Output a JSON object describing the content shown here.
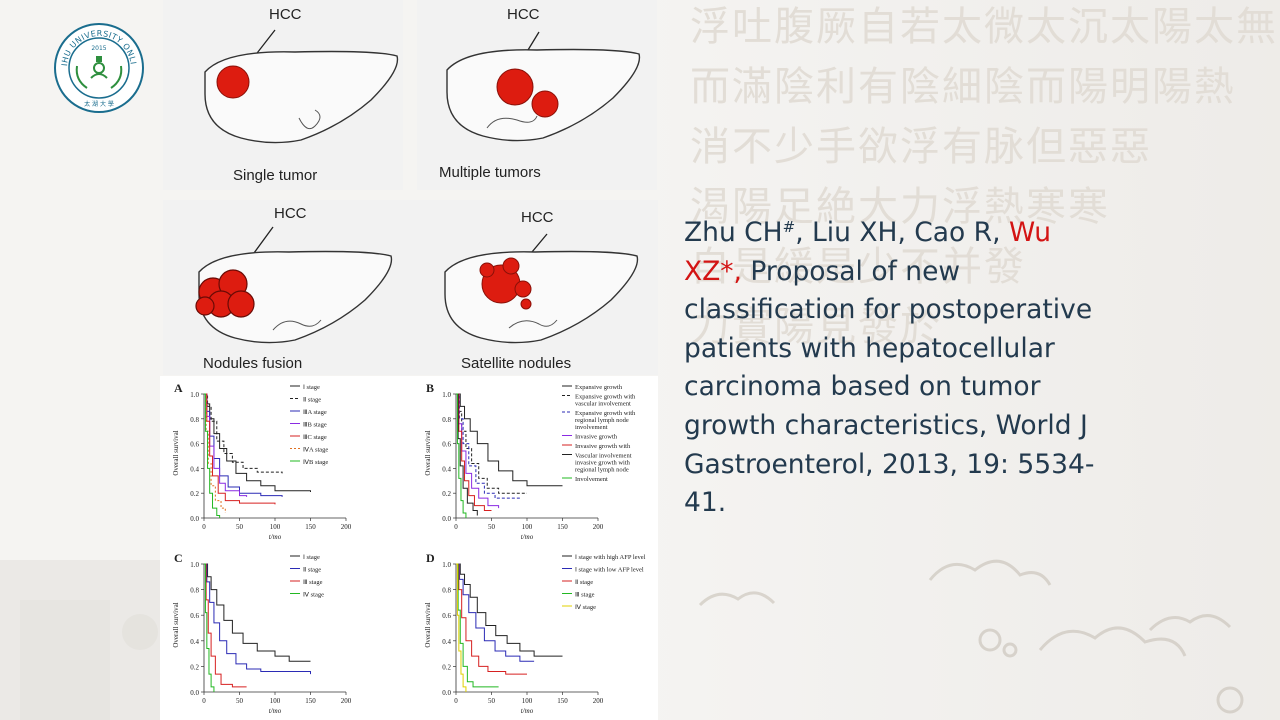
{
  "logo": {
    "ring_text": "TAIHU UNIVERSITY ONLINE",
    "year": "2015",
    "bottom_text": "太 湖 大 學",
    "color": "#1a6d8e"
  },
  "background_glyphs": [
    "浮吐腹厥自若太微太沉太陽太無",
    "而滿陰利有陰細陰而陽明陽熱",
    "消不少手欲浮有脉但惡惡",
    "渴陽足絶大力浮熱寒寒",
    "自是緩是少不并發",
    "力實陽見發於"
  ],
  "liver_diagrams": [
    {
      "hcc": "HCC",
      "caption": "Single tumor"
    },
    {
      "hcc": "HCC",
      "caption": "Multiple tumors"
    },
    {
      "hcc": "HCC",
      "caption": "Nodules fusion"
    },
    {
      "hcc": "HCC",
      "caption": "Satellite nodules"
    }
  ],
  "tumor_color": "#dd1c10",
  "km_common": {
    "ylabel": "Overall survival",
    "xlabel": "t/mo",
    "yticks": [
      "0.0",
      "0.2",
      "0.4",
      "0.6",
      "0.8",
      "1.0"
    ],
    "xticks": [
      "0",
      "50",
      "100",
      "150",
      "200"
    ]
  },
  "km_panels": [
    {
      "letter": "A",
      "legend": [
        "Ⅰ stage",
        "Ⅱ stage",
        "ⅢA stage",
        "ⅢB stage",
        "ⅢC stage",
        "ⅣA stage",
        "ⅣB stage"
      ]
    },
    {
      "letter": "B",
      "legend": [
        "Expansive growth",
        "Expansive growth with vascular involvement",
        "Expansive growth with regional lymph node involvement",
        "Invasive growth",
        "Invasive growth with",
        "Vascular involvement invasive growth with regional lymph node",
        "Involvement"
      ]
    },
    {
      "letter": "C",
      "legend": [
        "Ⅰ stage",
        "Ⅱ stage",
        "Ⅲ stage",
        "Ⅳ stage"
      ]
    },
    {
      "letter": "D",
      "legend": [
        "Ⅰ stage with high AFP level",
        "Ⅰ stage with low AFP level",
        "Ⅱ stage",
        "Ⅲ stage",
        "Ⅳ stage"
      ]
    }
  ],
  "citation": {
    "authors_part1": "Zhu CH",
    "sup": "#",
    "authors_part2": ", Liu XH, Cao R, ",
    "corresponding": "Wu XZ*,",
    "body": " Proposal of new classification for postoperative patients with hepatocellular carcinoma based on tumor growth characteristics, World J Gastroenterol, 2013, 19: 5534-41."
  }
}
